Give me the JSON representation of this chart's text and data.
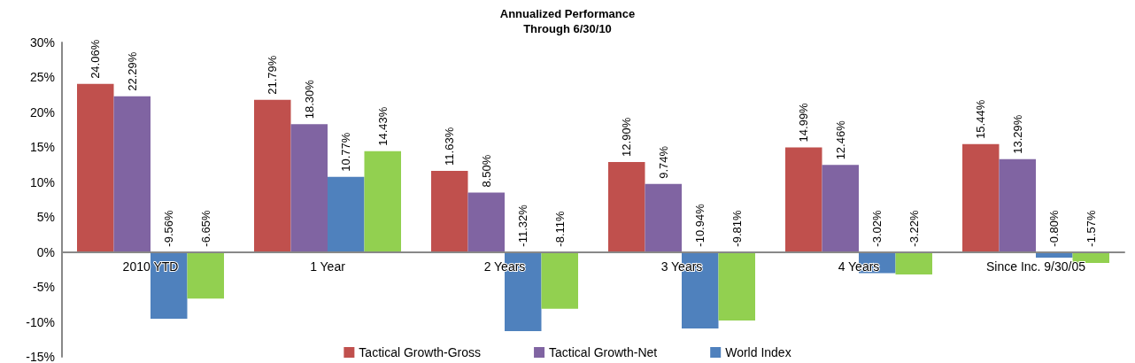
{
  "chart_data": {
    "type": "bar",
    "title": "Annualized Performance\nThrough 6/30/10",
    "categories": [
      "2010 YTD",
      "1 Year",
      "2 Years",
      "3 Years",
      "4 Years",
      "Since Inc. 9/30/05"
    ],
    "series": [
      {
        "name": "Tactical Growth-Gross",
        "color": "#c0504d",
        "values": [
          24.06,
          21.79,
          11.63,
          12.9,
          14.99,
          15.44
        ],
        "value_labels": [
          "24.06%",
          "21.79%",
          "11.63%",
          "12.90%",
          "14.99%",
          "15.44%"
        ]
      },
      {
        "name": "Tactical Growth-Net",
        "color": "#8064a2",
        "values": [
          22.29,
          18.3,
          8.5,
          9.74,
          12.46,
          13.29
        ],
        "value_labels": [
          "22.29%",
          "18.30%",
          "8.50%",
          "9.74%",
          "12.46%",
          "13.29%"
        ]
      },
      {
        "name": "World Index",
        "color": "#4f81bd",
        "values": [
          -9.56,
          10.77,
          -11.32,
          -10.94,
          -3.02,
          -0.8
        ],
        "value_labels": [
          "-9.56%",
          "10.77%",
          "-11.32%",
          "-10.94%",
          "-3.02%",
          "-0.80%"
        ]
      },
      {
        "color": "#92d050",
        "values": [
          -6.65,
          14.43,
          -8.11,
          -9.81,
          -3.22,
          -1.57
        ],
        "value_labels": [
          "-6.65%",
          "14.43%",
          "-8.11%",
          "-9.81%",
          "-3.22%",
          "-1.57%"
        ]
      }
    ],
    "ylim": [
      -15,
      30
    ],
    "yticks": [
      {
        "value": -15,
        "label": "-15%"
      },
      {
        "value": -10,
        "label": "-10%"
      },
      {
        "value": -5,
        "label": "-5%"
      },
      {
        "value": 0,
        "label": "0%"
      },
      {
        "value": 5,
        "label": "5%"
      },
      {
        "value": 10,
        "label": "10%"
      },
      {
        "value": 15,
        "label": "15%"
      },
      {
        "value": 20,
        "label": "20%"
      },
      {
        "value": 25,
        "label": "25%"
      },
      {
        "value": 30,
        "label": "30%"
      }
    ],
    "grid": false,
    "legend": "bottom"
  }
}
